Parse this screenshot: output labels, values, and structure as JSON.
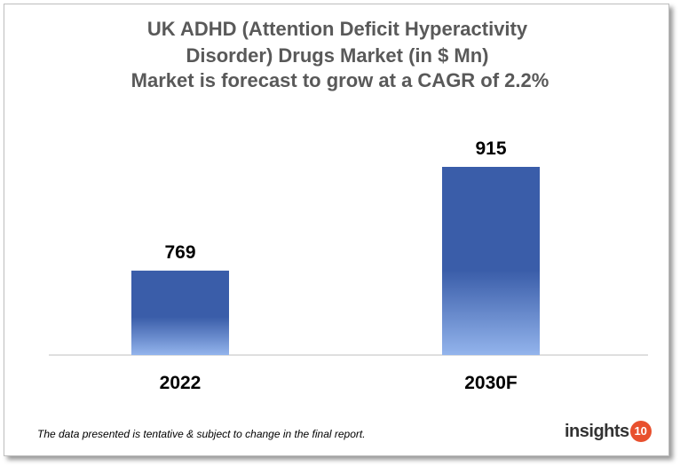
{
  "chart_data": {
    "type": "bar",
    "title": "UK ADHD (Attention Deficit Hyperactivity Disorder) Drugs Market (in $ Mn)",
    "subtitle": "Market is forecast to grow at a CAGR of 2.2%",
    "categories": [
      "2022",
      "2030F"
    ],
    "values": [
      769,
      915
    ],
    "color": "#3a5da9"
  },
  "footer": {
    "note": "The data presented is tentative & subject to change in the final report.",
    "logo": {
      "text": "insights",
      "badge": "10"
    }
  }
}
